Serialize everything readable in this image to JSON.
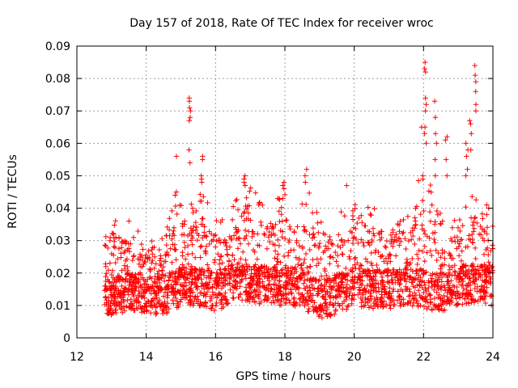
{
  "chart_data": {
    "type": "scatter",
    "title": "Day 157 of 2018, Rate Of TEC Index for receiver wroc",
    "xlabel": "GPS time / hours",
    "ylabel": "ROTI / TECUs",
    "xlim": [
      12,
      24
    ],
    "ylim": [
      0,
      0.09
    ],
    "x_ticks": [
      "12",
      "14",
      "16",
      "18",
      "20",
      "22",
      "24"
    ],
    "y_ticks": [
      "0",
      "0.01",
      "0.02",
      "0.03",
      "0.04",
      "0.05",
      "0.06",
      "0.07",
      "0.08",
      "0.09"
    ],
    "grid": true,
    "marker": "+",
    "color": "#ff0000",
    "x_start": 12.8,
    "x_end": 24.0,
    "baseline": [
      [
        12.8,
        0.012
      ],
      [
        13.5,
        0.014
      ],
      [
        14.5,
        0.013
      ],
      [
        15.0,
        0.016
      ],
      [
        15.5,
        0.016
      ],
      [
        16.0,
        0.014
      ],
      [
        16.5,
        0.017
      ],
      [
        17.0,
        0.017
      ],
      [
        17.5,
        0.016
      ],
      [
        18.0,
        0.016
      ],
      [
        18.5,
        0.015
      ],
      [
        19.0,
        0.012
      ],
      [
        19.5,
        0.013
      ],
      [
        20.0,
        0.016
      ],
      [
        20.5,
        0.015
      ],
      [
        21.0,
        0.015
      ],
      [
        21.5,
        0.016
      ],
      [
        22.0,
        0.015
      ],
      [
        22.5,
        0.014
      ],
      [
        23.0,
        0.016
      ],
      [
        23.5,
        0.017
      ],
      [
        24.0,
        0.016
      ]
    ],
    "upper_envelope": [
      [
        12.8,
        0.03
      ],
      [
        13.0,
        0.04
      ],
      [
        13.5,
        0.035
      ],
      [
        14.0,
        0.03
      ],
      [
        14.5,
        0.03
      ],
      [
        14.9,
        0.045
      ],
      [
        15.2,
        0.04
      ],
      [
        15.6,
        0.045
      ],
      [
        16.0,
        0.035
      ],
      [
        16.5,
        0.04
      ],
      [
        16.8,
        0.048
      ],
      [
        17.2,
        0.045
      ],
      [
        17.5,
        0.04
      ],
      [
        18.0,
        0.045
      ],
      [
        18.3,
        0.04
      ],
      [
        18.7,
        0.045
      ],
      [
        19.0,
        0.035
      ],
      [
        19.5,
        0.038
      ],
      [
        20.0,
        0.04
      ],
      [
        20.5,
        0.04
      ],
      [
        21.0,
        0.038
      ],
      [
        21.5,
        0.04
      ],
      [
        22.0,
        0.05
      ],
      [
        22.3,
        0.045
      ],
      [
        22.7,
        0.03
      ],
      [
        23.0,
        0.04
      ],
      [
        23.4,
        0.045
      ],
      [
        24.0,
        0.035
      ]
    ],
    "spikes": [
      {
        "x": 15.25,
        "values": [
          0.074,
          0.073,
          0.071,
          0.07,
          0.068,
          0.067,
          0.058,
          0.054
        ]
      },
      {
        "x": 14.85,
        "values": [
          0.056,
          0.045,
          0.044
        ]
      },
      {
        "x": 15.6,
        "values": [
          0.056,
          0.055,
          0.05,
          0.049,
          0.048
        ]
      },
      {
        "x": 16.85,
        "values": [
          0.05,
          0.049,
          0.048,
          0.047
        ]
      },
      {
        "x": 17.95,
        "values": [
          0.048,
          0.047,
          0.046
        ]
      },
      {
        "x": 18.6,
        "values": [
          0.052,
          0.05,
          0.048
        ]
      },
      {
        "x": 19.8,
        "values": [
          0.047
        ]
      },
      {
        "x": 21.95,
        "values": [
          0.065,
          0.05,
          0.049
        ]
      },
      {
        "x": 22.05,
        "values": [
          0.085,
          0.083,
          0.082,
          0.074,
          0.072,
          0.07,
          0.065,
          0.063,
          0.06
        ]
      },
      {
        "x": 22.35,
        "values": [
          0.073,
          0.068,
          0.063,
          0.06,
          0.055,
          0.05
        ]
      },
      {
        "x": 22.65,
        "values": [
          0.062,
          0.061,
          0.055,
          0.05
        ]
      },
      {
        "x": 23.25,
        "values": [
          0.06,
          0.058,
          0.056,
          0.052,
          0.05
        ]
      },
      {
        "x": 23.35,
        "values": [
          0.067,
          0.066,
          0.063,
          0.058
        ]
      },
      {
        "x": 23.5,
        "values": [
          0.084,
          0.081,
          0.079,
          0.076,
          0.072,
          0.07
        ]
      },
      {
        "x": 23.85,
        "values": [
          0.041,
          0.04,
          0.038
        ]
      }
    ]
  }
}
